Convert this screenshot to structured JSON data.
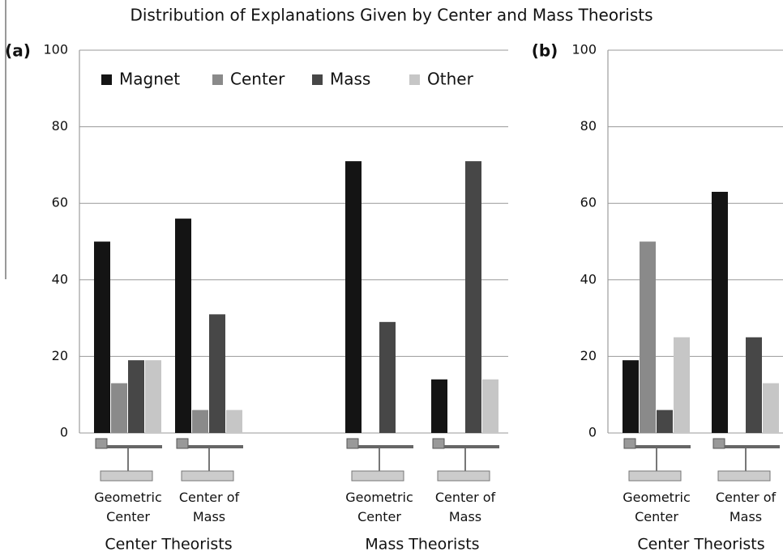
{
  "title": "Distribution of Explanations Given by Center and Mass Theorists",
  "chart_data": [
    {
      "type": "bar",
      "panel_label": "(a)",
      "categories": [
        "Geometric Center",
        "Center of Mass",
        "Geometric Center",
        "Center of Mass"
      ],
      "groups": [
        "Center Theorists",
        "Mass Theorists"
      ],
      "series": [
        {
          "name": "Magnet",
          "color": "#141414",
          "values": [
            50,
            56,
            71,
            14
          ]
        },
        {
          "name": "Center",
          "color": "#8a8a8a",
          "values": [
            13,
            6,
            0,
            0
          ]
        },
        {
          "name": "Mass",
          "color": "#474747",
          "values": [
            19,
            31,
            29,
            71
          ]
        },
        {
          "name": "Other",
          "color": "#c6c6c6",
          "values": [
            19,
            6,
            0,
            14
          ]
        }
      ],
      "ylim": [
        0,
        100
      ],
      "yticks": [
        0,
        20,
        40,
        60,
        80,
        100
      ],
      "grid": true,
      "legend": "top"
    },
    {
      "type": "bar",
      "panel_label": "(b)",
      "categories": [
        "Geometric Center",
        "Center of Mass"
      ],
      "groups": [
        "Center Theorists"
      ],
      "series": [
        {
          "name": "Magnet",
          "color": "#141414",
          "values": [
            19,
            63
          ]
        },
        {
          "name": "Center",
          "color": "#8a8a8a",
          "values": [
            50,
            0
          ]
        },
        {
          "name": "Mass",
          "color": "#474747",
          "values": [
            6,
            25
          ]
        },
        {
          "name": "Other",
          "color": "#c6c6c6",
          "values": [
            25,
            13
          ]
        }
      ],
      "ylim": [
        0,
        100
      ],
      "yticks": [
        0,
        20,
        40,
        60,
        80,
        100
      ],
      "grid": true
    }
  ]
}
